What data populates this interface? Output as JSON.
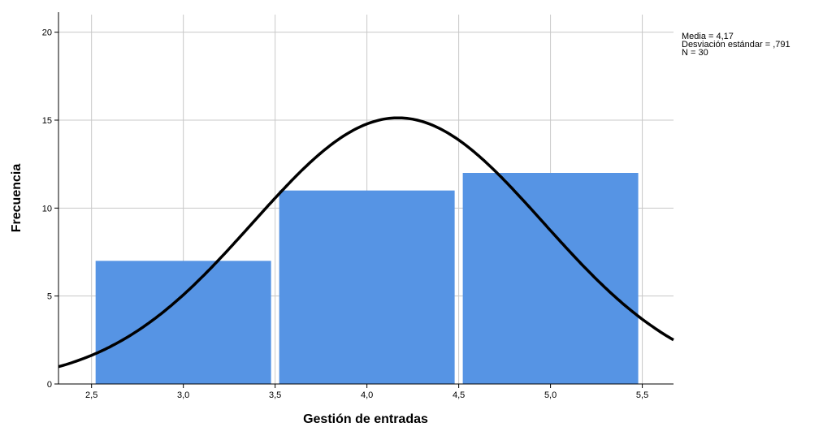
{
  "chart_data": {
    "type": "bar",
    "subtype": "histogram",
    "bins": [
      {
        "x0": 2.5,
        "x1": 3.5,
        "count": 7
      },
      {
        "x0": 3.5,
        "x1": 4.5,
        "count": 11
      },
      {
        "x0": 4.5,
        "x1": 5.5,
        "count": 12
      }
    ],
    "bar_color": "#5694e4",
    "curve": {
      "type": "normal",
      "mean": 4.17,
      "sd": 0.791,
      "n": 30,
      "bin_width": 1,
      "color": "#000000"
    },
    "xlabel": "Gestión de entradas",
    "ylabel": "Frecuencia",
    "xlim": [
      2.32,
      5.67
    ],
    "ylim": [
      0,
      21
    ],
    "x_ticks": [
      2.5,
      3.0,
      3.5,
      4.0,
      4.5,
      5.0,
      5.5
    ],
    "x_tick_labels": [
      "2,5",
      "3,0",
      "3,5",
      "4,0",
      "4,5",
      "5,0",
      "5,5"
    ],
    "y_ticks": [
      0,
      5,
      10,
      15,
      20
    ],
    "y_tick_labels": [
      "0",
      "5",
      "10",
      "15",
      "20"
    ],
    "grid": true,
    "grid_color": "#c8c8c8",
    "stats_text": [
      "Media = 4,17",
      "Desviación estándar = ,791",
      "N = 30"
    ]
  }
}
